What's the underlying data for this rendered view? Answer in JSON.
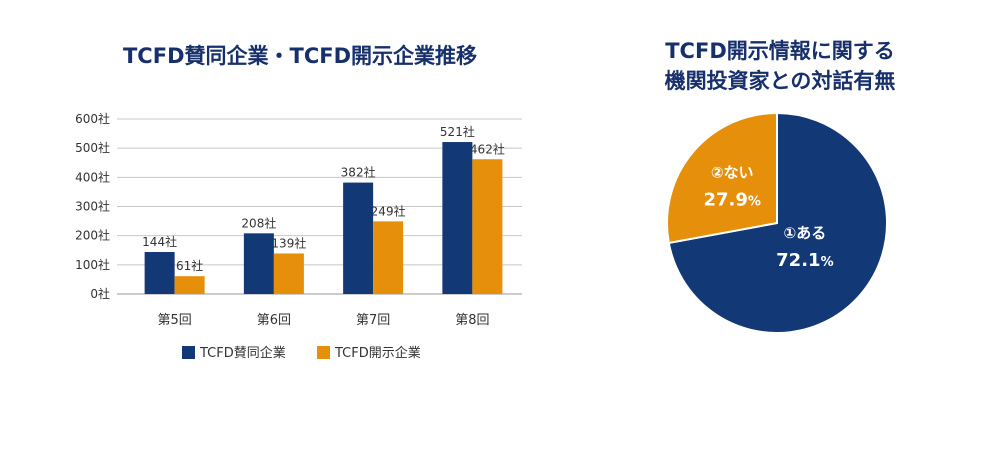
{
  "chart_data": [
    {
      "type": "bar",
      "title": "TCFD賛同企業・TCFD開示企業推移",
      "categories": [
        "第5回",
        "第6回",
        "第7回",
        "第8回"
      ],
      "series": [
        {
          "name": "TCFD賛同企業",
          "values": [
            144,
            208,
            382,
            521
          ],
          "color": "#123876"
        },
        {
          "name": "TCFD開示企業",
          "values": [
            61,
            139,
            249,
            462
          ],
          "color": "#e58f0a"
        }
      ],
      "unit": "社",
      "ylim": [
        0,
        600
      ],
      "yticks": [
        0,
        100,
        200,
        300,
        400,
        500,
        600
      ],
      "ytick_labels": [
        "0社",
        "100社",
        "200社",
        "300社",
        "400社",
        "500社",
        "600社"
      ],
      "data_labels": [
        [
          "144社",
          "208社",
          "382社",
          "521社"
        ],
        [
          "61社",
          "139社",
          "249社",
          "462社"
        ]
      ],
      "grid": true,
      "legend": "bottom"
    },
    {
      "type": "pie",
      "title_lines": [
        "TCFD開示情報に関する",
        "機関投資家との対話有無"
      ],
      "slices": [
        {
          "label": "①ある",
          "value": 72.1,
          "display": "72.1",
          "unit": "%",
          "color": "#123876"
        },
        {
          "label": "②ない",
          "value": 27.9,
          "display": "27.9",
          "unit": "%",
          "color": "#e58f0a"
        }
      ]
    }
  ]
}
